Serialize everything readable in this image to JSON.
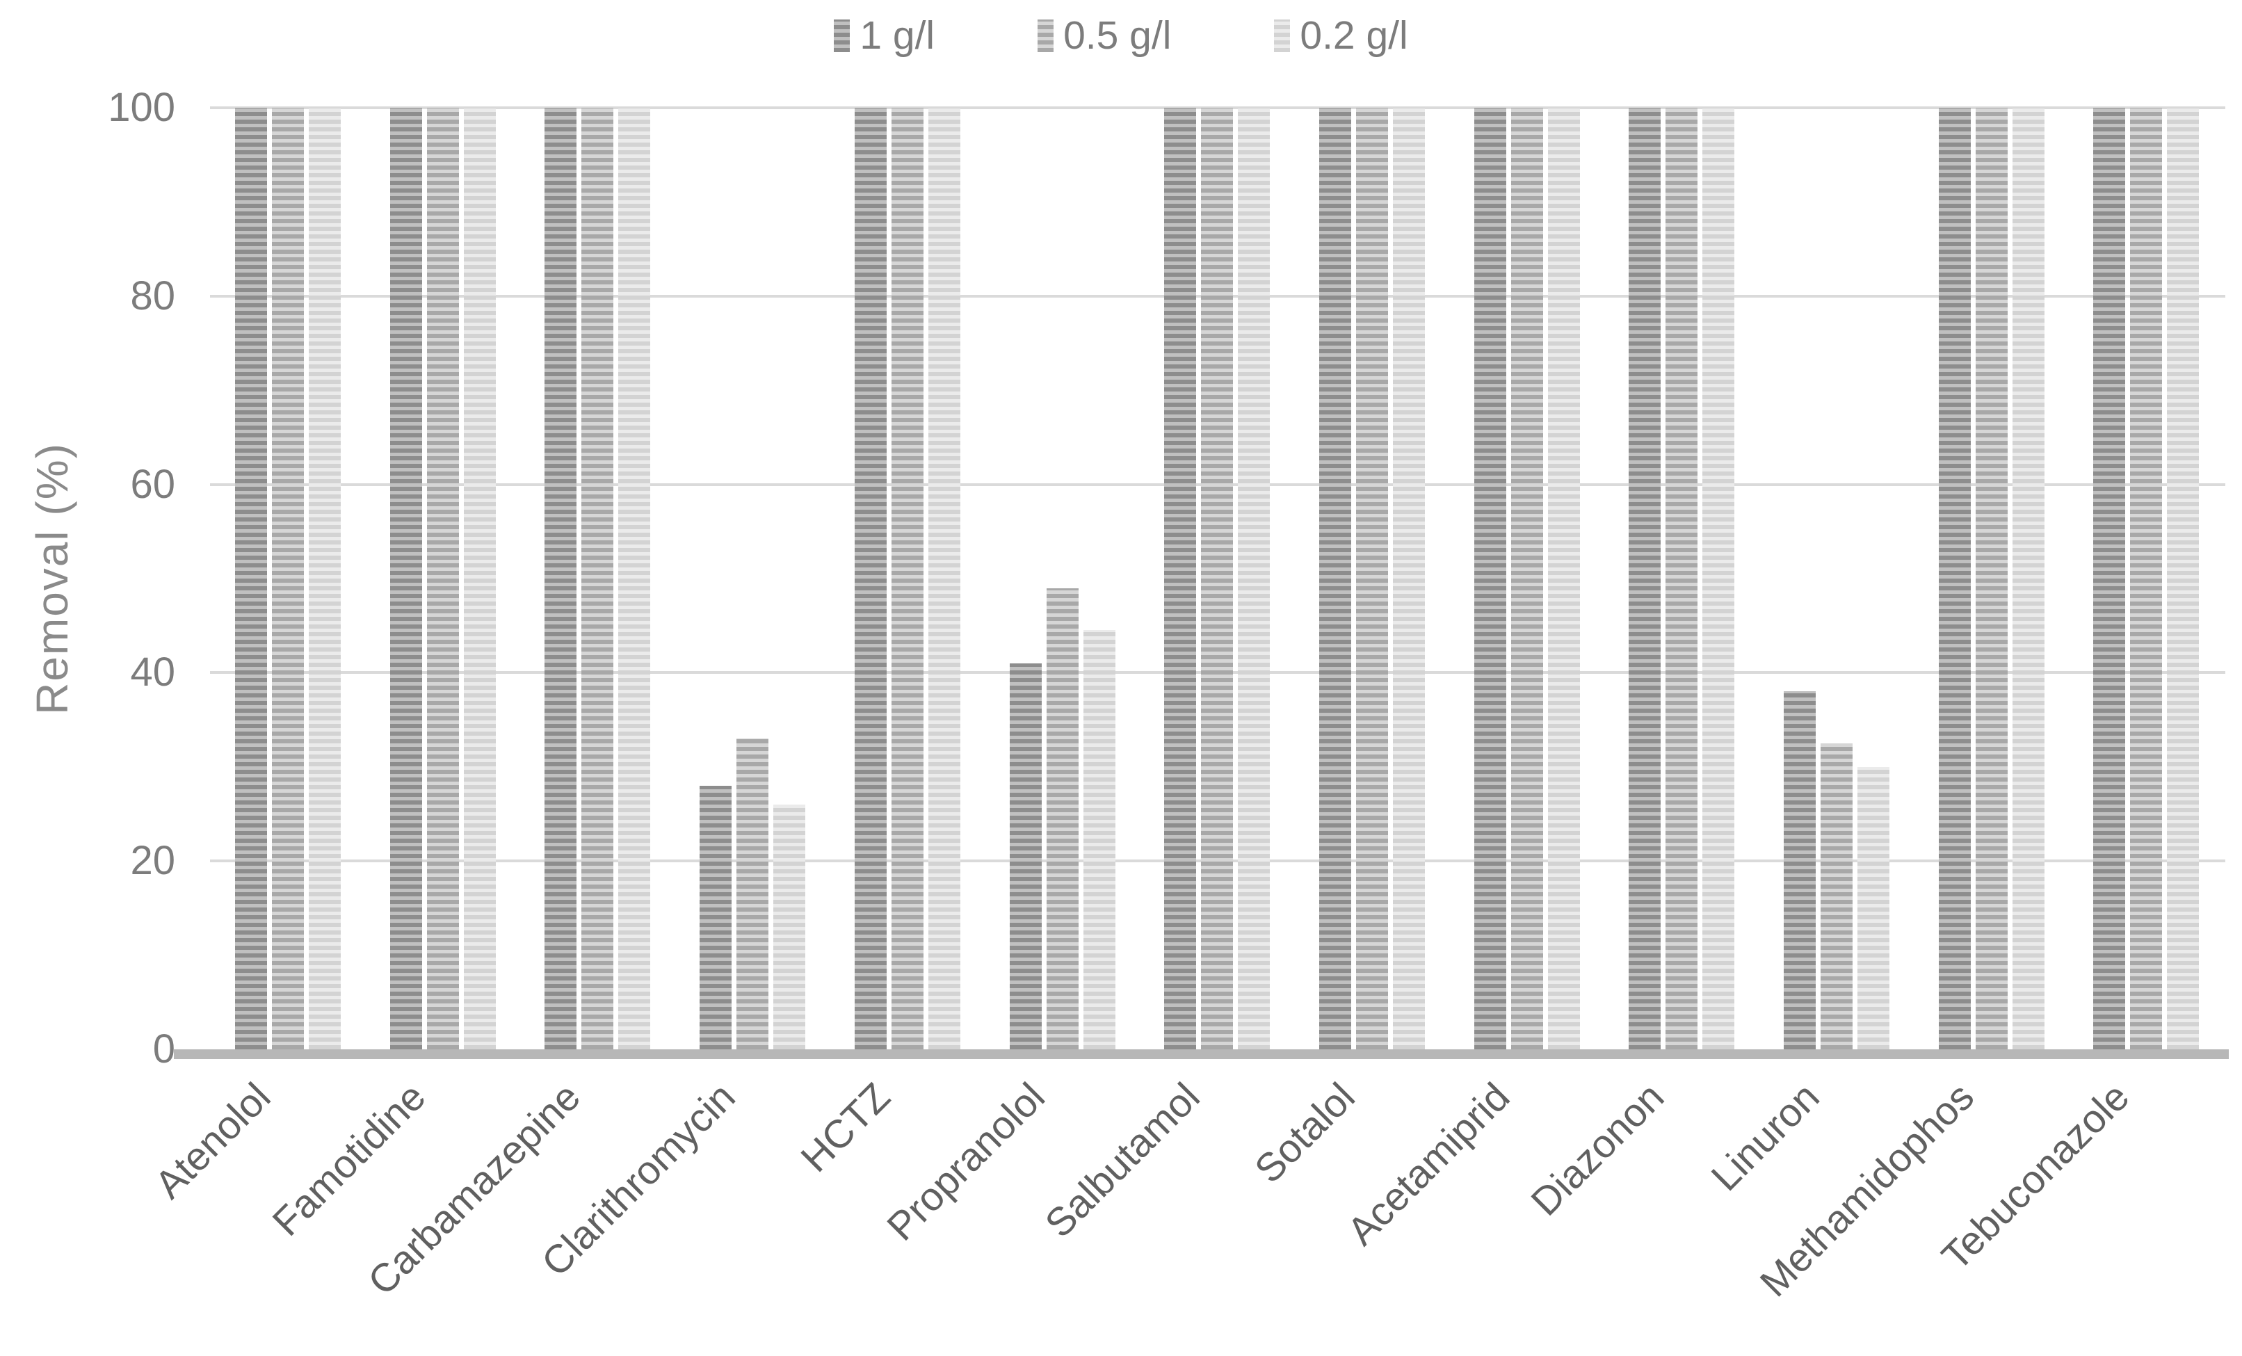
{
  "colors": {
    "background": "#ffffff",
    "gridline": "#dadada",
    "baseline": "#b7b7b7",
    "tick_text": "#7c7c7c",
    "category_text": "#606060",
    "axis_title_text": "#8a8a8a"
  },
  "chart_data": {
    "type": "bar",
    "title": "",
    "xlabel": "",
    "ylabel": "Removal (%)",
    "ylim": [
      0,
      100
    ],
    "yticks": [
      0,
      20,
      40,
      60,
      80,
      100
    ],
    "grid": true,
    "legend_position": "top-center",
    "categories": [
      "Atenolol",
      "Famotidine",
      "Carbamazepine",
      "Clarithromycin",
      "HCTZ",
      "Propranolol",
      "Salbutamol",
      "Sotalol",
      "Acetamiprid",
      "Diazonon",
      "Linuron",
      "Methamidophos",
      "Tebuconazole"
    ],
    "series": [
      {
        "name": "1 g/l",
        "stripe_dark": "#8d8d8d",
        "stripe_light": "#c0c0c0",
        "values": [
          100,
          100,
          100,
          28,
          100,
          41,
          100,
          100,
          100,
          100,
          38,
          100,
          100
        ]
      },
      {
        "name": "0.5 g/l",
        "stripe_dark": "#a8a8a8",
        "stripe_light": "#d6d6d6",
        "values": [
          100,
          100,
          100,
          33,
          100,
          49,
          100,
          100,
          100,
          100,
          32.5,
          100,
          100
        ]
      },
      {
        "name": "0.2 g/l",
        "stripe_dark": "#d3d3d3",
        "stripe_light": "#ebebeb",
        "values": [
          100,
          100,
          100,
          26,
          100,
          44.5,
          100,
          100,
          100,
          100,
          30,
          100,
          100
        ]
      }
    ]
  }
}
